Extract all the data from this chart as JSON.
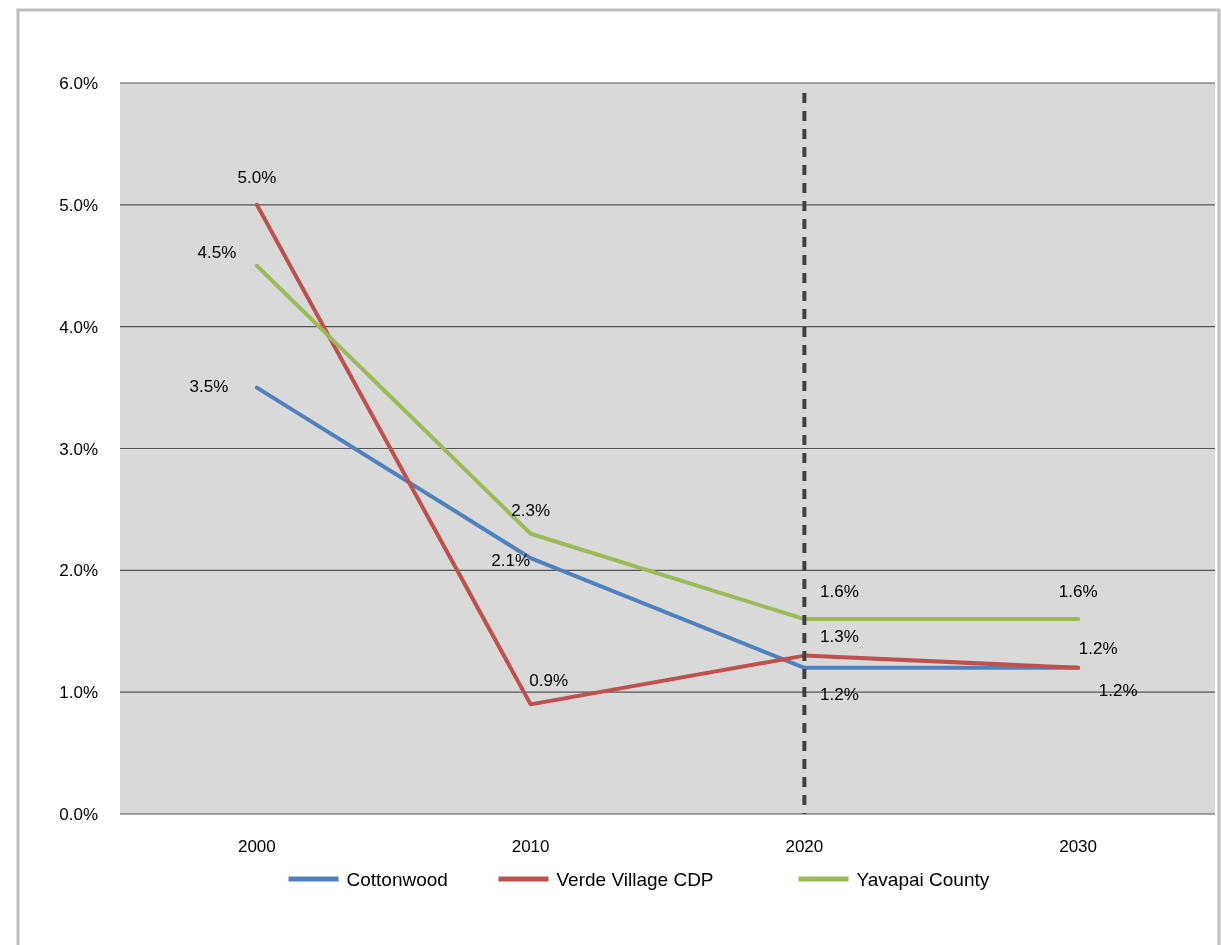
{
  "chart_data": {
    "type": "line",
    "categories": [
      "2000",
      "2010",
      "2020",
      "2030"
    ],
    "series": [
      {
        "name": "Cottonwood",
        "color": "#4f81bd",
        "values": [
          3.5,
          2.1,
          1.2,
          1.2
        ],
        "value_labels": [
          "3.5%",
          "2.1%",
          "1.2%",
          "1.2%"
        ]
      },
      {
        "name": "Verde Village CDP",
        "color": "#c0504d",
        "values": [
          5.0,
          0.9,
          1.3,
          1.2
        ],
        "value_labels": [
          "5.0%",
          "0.9%",
          "1.3%",
          "1.2%"
        ]
      },
      {
        "name": "Yavapai County",
        "color": "#9bbb59",
        "values": [
          4.5,
          2.3,
          1.6,
          1.6
        ],
        "value_labels": [
          "4.5%",
          "2.3%",
          "1.6%",
          "1.6%"
        ]
      }
    ],
    "ylim": [
      0,
      6
    ],
    "yticks": [
      {
        "value": 0,
        "label": "0.0%"
      },
      {
        "value": 1,
        "label": "1.0%"
      },
      {
        "value": 2,
        "label": "2.0%"
      },
      {
        "value": 3,
        "label": "3.0%"
      },
      {
        "value": 4,
        "label": "4.0%"
      },
      {
        "value": 5,
        "label": "5.0%"
      },
      {
        "value": 6,
        "label": "6.0%"
      }
    ],
    "ref_lines": [
      {
        "axis": "x",
        "value": "2020",
        "color": "#404040",
        "line_style": "dashed"
      }
    ],
    "grid": "y",
    "legend": "bottom",
    "marker": "none",
    "line_style": "solid"
  }
}
